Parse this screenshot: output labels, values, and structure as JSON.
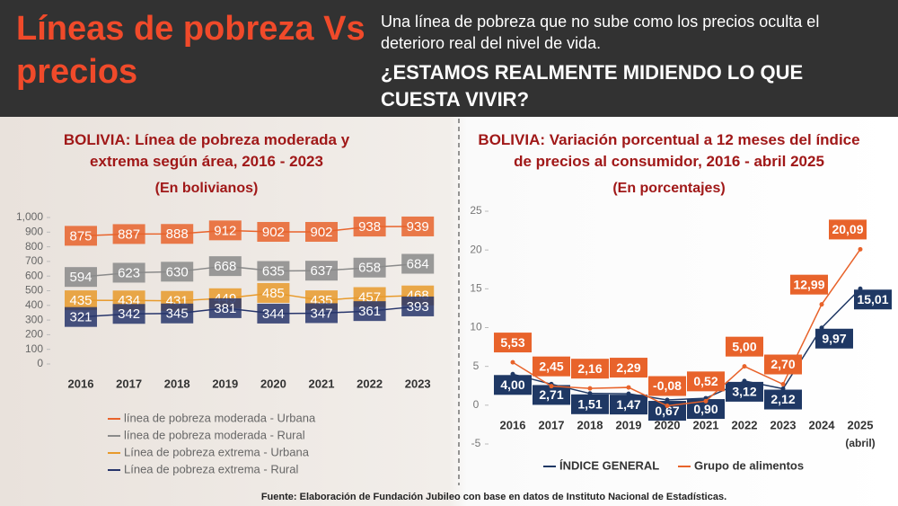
{
  "header": {
    "title": "Líneas de pobreza Vs precios",
    "text": "Una línea de pobreza que no sube como los precios oculta el deterioro real del nivel de vida.",
    "question": "¿ESTAMOS REALMENTE MIDIENDO LO QUE CUESTA VIVIR?"
  },
  "chart_data": [
    {
      "type": "line",
      "title": "BOLIVIA: Línea de pobreza moderada y extrema según área, 2016 - 2023",
      "subtitle": "(En bolivianos)",
      "categories": [
        "2016",
        "2017",
        "2018",
        "2019",
        "2020",
        "2021",
        "2022",
        "2023"
      ],
      "series": [
        {
          "name": "línea de pobreza moderada - Urbana",
          "color": "#e8632b",
          "values": [
            875,
            887,
            888,
            912,
            902,
            902,
            938,
            939
          ]
        },
        {
          "name": "línea de pobreza moderada - Rural",
          "color": "#8a8a8a",
          "values": [
            594,
            623,
            630,
            668,
            635,
            637,
            658,
            684
          ]
        },
        {
          "name": "Línea de pobreza extrema - Urbana",
          "color": "#e89a2b",
          "values": [
            435,
            434,
            431,
            449,
            485,
            435,
            457,
            468
          ]
        },
        {
          "name": "Línea de pobreza extrema - Rural",
          "color": "#27356b",
          "values": [
            321,
            342,
            345,
            381,
            344,
            347,
            361,
            393
          ]
        }
      ],
      "ylim": [
        0,
        1000
      ],
      "yticks": [
        0,
        100,
        200,
        300,
        400,
        500,
        600,
        700,
        800,
        900,
        {
          "value": 1000,
          "label": "1,000"
        }
      ]
    },
    {
      "type": "line",
      "title": "BOLIVIA: Variación porcentual a 12 meses del índice de precios al consumidor, 2016 - abril 2025",
      "subtitle": "(En porcentajes)",
      "categories": [
        "2016",
        "2017",
        "2018",
        "2019",
        "2020",
        "2021",
        "2022",
        "2023",
        "2024",
        "2025"
      ],
      "annotation": "(abril)",
      "series": [
        {
          "name": "ÍNDICE GENERAL",
          "color": "#1f3864",
          "values": [
            4.0,
            2.71,
            1.51,
            1.47,
            0.67,
            0.9,
            3.12,
            2.12,
            9.97,
            15.01
          ],
          "value_labels": [
            "4,00",
            "2,71",
            "1,51",
            "1,47",
            "0,67",
            "0,90",
            "3,12",
            "2,12",
            "9,97",
            "15,01"
          ]
        },
        {
          "name": "Grupo de alimentos",
          "color": "#e8632b",
          "values": [
            5.53,
            2.45,
            2.16,
            2.29,
            -0.08,
            0.52,
            5.0,
            2.7,
            12.99,
            20.09
          ],
          "value_labels": [
            "5,53",
            "2,45",
            "2,16",
            "2,29",
            "-0,08",
            "0,52",
            "5,00",
            "2,70",
            "12,99",
            "20,09"
          ]
        }
      ],
      "ylim": [
        -5,
        25
      ],
      "yticks": [
        -5,
        0,
        5,
        10,
        15,
        20,
        25
      ]
    }
  ],
  "source": "Fuente: Elaboración de Fundación Jubileo con base en datos de Instituto Nacional de Estadísticas."
}
